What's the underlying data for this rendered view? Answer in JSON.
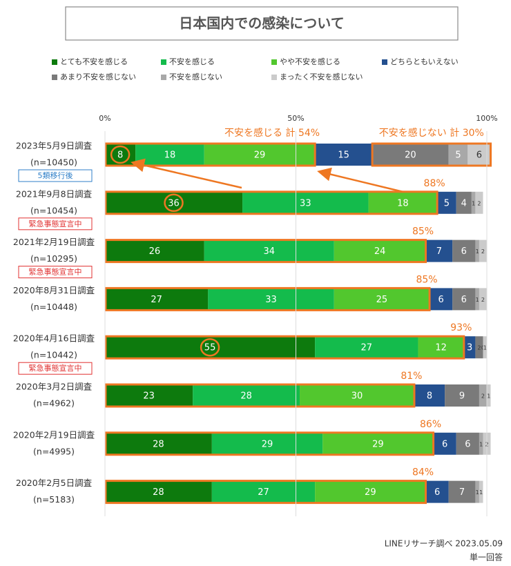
{
  "chart_data": {
    "type": "stacked_barh",
    "title": "日本国内での感染について",
    "categories": [
      "2023年5月9日調査",
      "2021年9月8日調査",
      "2021年2月19日調査",
      "2020年8月31日調査",
      "2020年4月16日調査",
      "2020年3月2日調査",
      "2020年2月19日調査",
      "2020年2月5日調査"
    ],
    "sample_labels": [
      "(n=10450)",
      "(n=10454)",
      "(n=10295)",
      "(n=10448)",
      "(n=10442)",
      "(n=4962)",
      "(n=4995)",
      "(n=5183)"
    ],
    "series": [
      {
        "name": "とても不安を感じる",
        "color": "#0d7a0d",
        "values": [
          8,
          36,
          26,
          27,
          55,
          23,
          28,
          28
        ]
      },
      {
        "name": "不安を感じる",
        "color": "#14bb4c",
        "values": [
          18,
          33,
          34,
          33,
          27,
          28,
          29,
          27
        ]
      },
      {
        "name": "やや不安を感じる",
        "color": "#52c72e",
        "values": [
          29,
          18,
          24,
          25,
          12,
          30,
          29,
          29
        ]
      },
      {
        "name": "どちらともいえない",
        "color": "#24508f",
        "values": [
          15,
          5,
          7,
          6,
          3,
          8,
          6,
          6
        ]
      },
      {
        "name": "あまり不安を感じない",
        "color": "#7a7a7a",
        "values": [
          20,
          4,
          6,
          6,
          2,
          9,
          6,
          7
        ]
      },
      {
        "name": "不安を感じない",
        "color": "#a8a8a8",
        "values": [
          5,
          1,
          1,
          1,
          0,
          2,
          1,
          1
        ]
      },
      {
        "name": "まったく不安を感じない",
        "color": "#cbcbcb",
        "values": [
          6,
          2,
          2,
          2,
          1,
          1,
          2,
          1
        ]
      }
    ],
    "xlim": [
      0,
      100
    ],
    "xticks": [
      {
        "value": 0,
        "label": "0%"
      },
      {
        "value": 50,
        "label": "50%"
      },
      {
        "value": 100,
        "label": "100%"
      }
    ],
    "grid": true,
    "highlight_color": "#ee7722",
    "totals": [
      {
        "row": 1,
        "value": 88,
        "label": "88%"
      },
      {
        "row": 2,
        "value": 85,
        "label": "85%"
      },
      {
        "row": 3,
        "value": 85,
        "label": "85%"
      },
      {
        "row": 4,
        "value": 93,
        "label": "93%"
      },
      {
        "row": 5,
        "value": 81,
        "label": "81%"
      },
      {
        "row": 6,
        "value": 86,
        "label": "86%"
      },
      {
        "row": 7,
        "value": 84,
        "label": "84%"
      }
    ],
    "annotations": [
      {
        "text": "不安を感じる 計 54%",
        "value": 54
      },
      {
        "text": "不安を感じない 計 30%",
        "value": 30
      }
    ],
    "tags": [
      {
        "row": 0,
        "text": "5類移行後",
        "color": "#2f7fc8"
      },
      {
        "row": 1,
        "text": "緊急事態宣言中",
        "color": "#e03030"
      },
      {
        "row": 2,
        "text": "緊急事態宣言中",
        "color": "#e03030"
      },
      {
        "row": 4,
        "text": "緊急事態宣言中",
        "color": "#e03030"
      }
    ],
    "source": "LINEリサーチ調べ 2023.05.09",
    "note": "単一回答"
  }
}
